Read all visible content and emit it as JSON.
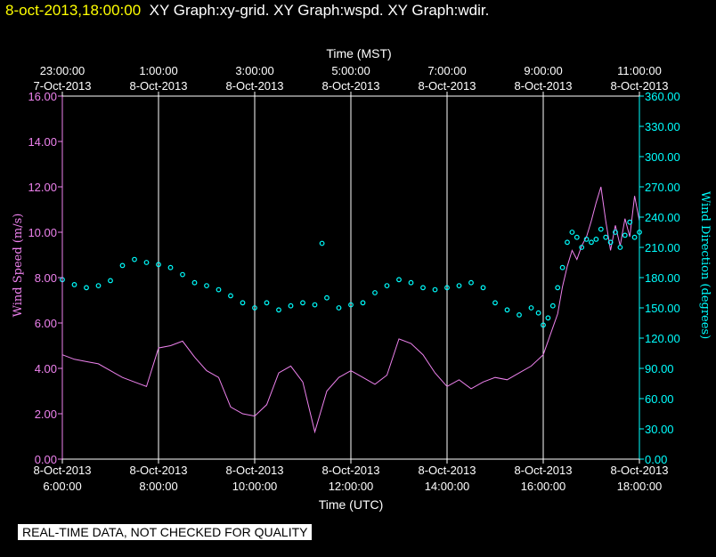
{
  "header": {
    "date_time": "8-oct-2013,18:00:00",
    "graph_names": "XY Graph:xy-grid.  XY Graph:wspd.  XY Graph:wdir."
  },
  "footer": {
    "quality_notice": "REAL-TIME DATA, NOT CHECKED FOR QUALITY"
  },
  "colors": {
    "speed": "#ee82ee",
    "direction": "#00ffff",
    "frame": "#ffffff",
    "background": "#000000"
  },
  "chart_data": {
    "type": "line",
    "xlabel": "Time (UTC)",
    "x2label": "Time (MST)",
    "ylabel": "Wind Speed (m/s)",
    "y2label": "Wind Direction (degrees)",
    "xlim_utc_hours": [
      6.0,
      18.0
    ],
    "ylim": [
      0,
      16
    ],
    "y2lim": [
      0,
      360
    ],
    "yticks": [
      "0.00",
      "2.00",
      "4.00",
      "6.00",
      "8.00",
      "10.00",
      "12.00",
      "14.00",
      "16.00"
    ],
    "y2ticks": [
      "0.00",
      "30.00",
      "60.00",
      "90.00",
      "120.00",
      "150.00",
      "180.00",
      "210.00",
      "240.00",
      "270.00",
      "300.00",
      "330.00",
      "360.00"
    ],
    "xticks_utc": [
      {
        "hour": 6,
        "date": "8-Oct-2013",
        "time": "6:00:00"
      },
      {
        "hour": 8,
        "date": "8-Oct-2013",
        "time": "8:00:00"
      },
      {
        "hour": 10,
        "date": "8-Oct-2013",
        "time": "10:00:00"
      },
      {
        "hour": 12,
        "date": "8-Oct-2013",
        "time": "12:00:00"
      },
      {
        "hour": 14,
        "date": "8-Oct-2013",
        "time": "14:00:00"
      },
      {
        "hour": 16,
        "date": "8-Oct-2013",
        "time": "16:00:00"
      },
      {
        "hour": 18,
        "date": "8-Oct-2013",
        "time": "18:00:00"
      }
    ],
    "xticks_mst": [
      {
        "hour": 6,
        "time": "23:00:00",
        "date": "7-Oct-2013"
      },
      {
        "hour": 8,
        "time": "1:00:00",
        "date": "8-Oct-2013"
      },
      {
        "hour": 10,
        "time": "3:00:00",
        "date": "8-Oct-2013"
      },
      {
        "hour": 12,
        "time": "5:00:00",
        "date": "8-Oct-2013"
      },
      {
        "hour": 14,
        "time": "7:00:00",
        "date": "8-Oct-2013"
      },
      {
        "hour": 16,
        "time": "9:00:00",
        "date": "8-Oct-2013"
      },
      {
        "hour": 18,
        "time": "11:00:00",
        "date": "8-Oct-2013"
      }
    ],
    "grid": "vertical lines at each time tick",
    "series": [
      {
        "axis": "left",
        "style": "line",
        "x": [
          6.0,
          6.25,
          6.5,
          6.75,
          7.0,
          7.25,
          7.5,
          7.75,
          8.0,
          8.25,
          8.5,
          8.75,
          9.0,
          9.25,
          9.5,
          9.75,
          10.0,
          10.25,
          10.5,
          10.75,
          11.0,
          11.25,
          11.5,
          11.75,
          12.0,
          12.25,
          12.5,
          12.75,
          13.0,
          13.25,
          13.5,
          13.75,
          14.0,
          14.25,
          14.5,
          14.75,
          15.0,
          15.25,
          15.5,
          15.75,
          16.0,
          16.1,
          16.2,
          16.3,
          16.4,
          16.5,
          16.6,
          16.7,
          16.8,
          16.9,
          17.0,
          17.1,
          17.2,
          17.3,
          17.4,
          17.5,
          17.6,
          17.7,
          17.8,
          17.9,
          18.0
        ],
        "y": [
          4.6,
          4.4,
          4.3,
          4.2,
          3.9,
          3.6,
          3.4,
          3.2,
          4.9,
          5.0,
          5.2,
          4.5,
          3.9,
          3.6,
          2.3,
          2.0,
          1.9,
          2.4,
          3.8,
          4.1,
          3.4,
          1.2,
          3.0,
          3.6,
          3.9,
          3.6,
          3.3,
          3.7,
          5.3,
          5.1,
          4.6,
          3.8,
          3.2,
          3.5,
          3.1,
          3.4,
          3.6,
          3.5,
          3.8,
          4.1,
          4.6,
          5.2,
          5.8,
          6.4,
          7.6,
          8.5,
          9.2,
          8.8,
          9.4,
          9.8,
          10.5,
          11.3,
          12.0,
          10.5,
          9.2,
          10.3,
          9.4,
          10.6,
          9.8,
          11.6,
          10.5
        ]
      },
      {
        "axis": "right",
        "style": "circles",
        "x": [
          6.0,
          6.25,
          6.5,
          6.75,
          7.0,
          7.25,
          7.5,
          7.75,
          8.0,
          8.25,
          8.5,
          8.75,
          9.0,
          9.25,
          9.5,
          9.75,
          10.0,
          10.25,
          10.5,
          10.75,
          11.0,
          11.25,
          11.4,
          11.5,
          11.75,
          12.0,
          12.25,
          12.5,
          12.75,
          13.0,
          13.25,
          13.5,
          13.75,
          14.0,
          14.25,
          14.5,
          14.75,
          15.0,
          15.25,
          15.5,
          15.75,
          15.9,
          16.0,
          16.1,
          16.2,
          16.3,
          16.4,
          16.5,
          16.6,
          16.7,
          16.8,
          16.9,
          17.0,
          17.1,
          17.2,
          17.3,
          17.4,
          17.5,
          17.6,
          17.7,
          17.8,
          17.9,
          18.0
        ],
        "y": [
          178,
          173,
          170,
          172,
          177,
          192,
          198,
          195,
          193,
          190,
          183,
          175,
          172,
          168,
          162,
          155,
          150,
          155,
          148,
          152,
          155,
          153,
          214,
          160,
          150,
          153,
          155,
          165,
          172,
          178,
          175,
          170,
          168,
          170,
          172,
          175,
          170,
          155,
          148,
          143,
          150,
          145,
          133,
          140,
          152,
          170,
          190,
          215,
          225,
          220,
          210,
          218,
          215,
          218,
          228,
          220,
          215,
          225,
          210,
          222,
          235,
          220,
          225
        ]
      }
    ]
  }
}
